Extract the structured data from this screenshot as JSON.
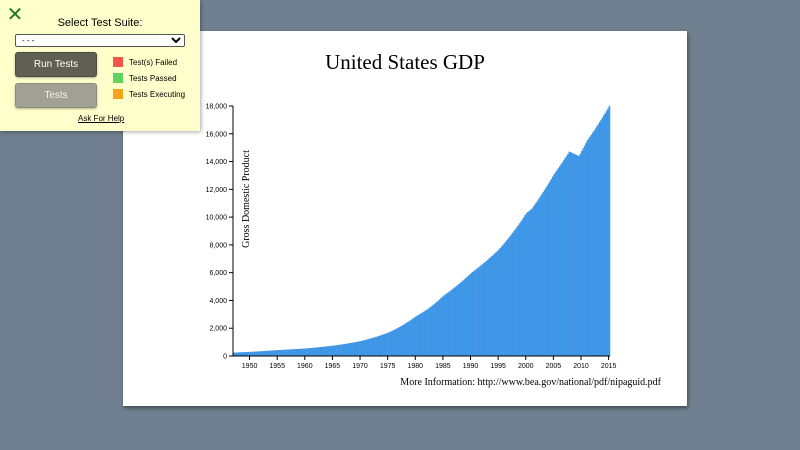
{
  "panel": {
    "close_glyph": "✕",
    "title": "Select Test Suite:",
    "select_value": "- - -",
    "run_label": "Run Tests",
    "tests_label": "Tests",
    "legend": [
      {
        "label": "Test(s) Failed",
        "color": "#f4554a"
      },
      {
        "label": "Tests Passed",
        "color": "#5fd35f"
      },
      {
        "label": "Tests Executing",
        "color": "#f7a21b"
      }
    ],
    "help_label": "Ask For Help"
  },
  "chart_data": {
    "type": "bar",
    "title": "United States GDP",
    "ylabel": "Gross Domestic Product",
    "xlabel": "",
    "footer": "More Information: http://www.bea.gov/national/pdf/nipaguid.pdf",
    "ylim": [
      0,
      18000
    ],
    "xlim": [
      1947,
      2015.25
    ],
    "bar_color": "#3f96e6",
    "y_ticks": [
      0,
      2000,
      4000,
      6000,
      8000,
      10000,
      12000,
      14000,
      16000,
      18000
    ],
    "y_tick_labels": [
      "0",
      "2,000",
      "4,000",
      "6,000",
      "8,000",
      "10,000",
      "12,000",
      "14,000",
      "16,000",
      "18,000"
    ],
    "x_ticks": [
      1950,
      1955,
      1960,
      1965,
      1970,
      1975,
      1980,
      1985,
      1990,
      1995,
      2000,
      2005,
      2010,
      2015
    ],
    "x_tick_labels": [
      "1950",
      "1955",
      "1960",
      "1965",
      "1970",
      "1975",
      "1980",
      "1985",
      "1990",
      "1995",
      "2000",
      "2005",
      "2010",
      "2015"
    ],
    "x": [
      1947,
      1950,
      1955,
      1960,
      1965,
      1970,
      1975,
      1980,
      1982,
      1985,
      1990,
      1995,
      2000,
      2001,
      2005,
      2007.75,
      2009.5,
      2011,
      2013,
      2015
    ],
    "values": [
      244,
      300,
      427,
      542,
      743,
      1075,
      1688,
      2862,
      3345,
      4347,
      5980,
      7664,
      10285,
      10622,
      13094,
      14717,
      14400,
      15518,
      16692,
      18000
    ]
  }
}
